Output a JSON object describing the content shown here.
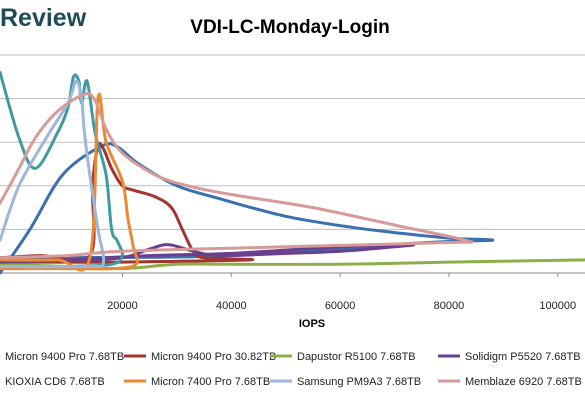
{
  "header": {
    "logo_text": "Review"
  },
  "chart_data": {
    "type": "line",
    "title": "VDI-LC-Monday-Login",
    "xlabel": "IOPS",
    "ylabel": "",
    "xlim": [
      -2500,
      105000
    ],
    "ylim": [
      0,
      100
    ],
    "x_ticks": [
      "20000",
      "40000",
      "60000",
      "80000",
      "100000"
    ],
    "x_tick_values": [
      20000,
      40000,
      60000,
      80000,
      100000
    ],
    "y_gridlines": [
      0,
      20,
      40,
      60,
      80,
      100
    ],
    "grid": true,
    "legend_position": "bottom",
    "series": [
      {
        "name": "Micron 9400 Pro 7.68TB",
        "color": "#3a6fb0",
        "points": [
          [
            -2500,
            0
          ],
          [
            3000,
            20
          ],
          [
            9000,
            45
          ],
          [
            16000,
            58
          ],
          [
            19000,
            58
          ],
          [
            23000,
            50
          ],
          [
            30000,
            40
          ],
          [
            38000,
            34
          ],
          [
            50000,
            26
          ],
          [
            62000,
            21
          ],
          [
            72000,
            18
          ],
          [
            80000,
            16
          ],
          [
            88000,
            15
          ],
          [
            76000,
            14
          ],
          [
            40000,
            8
          ],
          [
            10000,
            7
          ],
          [
            -2500,
            6
          ]
        ]
      },
      {
        "name": "Micron 9400 Pro 30.82TB",
        "color": "#a0342f",
        "points": [
          [
            -2500,
            7
          ],
          [
            5000,
            8
          ],
          [
            14000,
            8
          ],
          [
            14500,
            40
          ],
          [
            15500,
            58
          ],
          [
            16500,
            57
          ],
          [
            18000,
            48
          ],
          [
            20000,
            40
          ],
          [
            22000,
            38
          ],
          [
            26000,
            35
          ],
          [
            29000,
            30
          ],
          [
            31000,
            20
          ],
          [
            33000,
            10
          ],
          [
            35000,
            7
          ],
          [
            43500,
            6
          ],
          [
            20000,
            5
          ],
          [
            10000,
            5
          ],
          [
            -2500,
            5
          ]
        ]
      },
      {
        "name": "Dapustor R5100 7.68TB",
        "color": "#8cb048",
        "points": [
          [
            -2500,
            4
          ],
          [
            10000,
            3
          ],
          [
            20000,
            2
          ],
          [
            30000,
            4
          ],
          [
            40000,
            4
          ],
          [
            60000,
            4
          ],
          [
            80000,
            5
          ],
          [
            105000,
            6
          ]
        ]
      },
      {
        "name": "Solidigm P5520 7.68TB",
        "color": "#6a3f8e",
        "points": [
          [
            -2500,
            6
          ],
          [
            12000,
            6
          ],
          [
            20000,
            7
          ],
          [
            25000,
            11
          ],
          [
            28500,
            13
          ],
          [
            33000,
            10
          ],
          [
            38000,
            8
          ],
          [
            50000,
            9
          ],
          [
            60000,
            10
          ],
          [
            70000,
            12
          ],
          [
            73000,
            13
          ],
          [
            60000,
            12
          ],
          [
            40000,
            9
          ],
          [
            25000,
            8
          ],
          [
            10000,
            6
          ],
          [
            -2500,
            5
          ]
        ]
      },
      {
        "name": "KIOXIA CD6 7.68TB",
        "color": "#3f9aa4",
        "points": [
          [
            -2500,
            92
          ],
          [
            1000,
            62
          ],
          [
            4000,
            48
          ],
          [
            8000,
            64
          ],
          [
            10000,
            76
          ],
          [
            11000,
            90
          ],
          [
            12000,
            88
          ],
          [
            12500,
            78
          ],
          [
            13500,
            88
          ],
          [
            15000,
            64
          ],
          [
            17000,
            45
          ],
          [
            18000,
            20
          ],
          [
            19000,
            15
          ],
          [
            20000,
            8
          ],
          [
            18000,
            4
          ],
          [
            10000,
            3
          ],
          [
            -2500,
            2
          ]
        ]
      },
      {
        "name": "Micron 7400 Pro 7.68TB",
        "color": "#e98a33",
        "points": [
          [
            -2500,
            6
          ],
          [
            8000,
            6
          ],
          [
            14000,
            7
          ],
          [
            15500,
            80
          ],
          [
            17000,
            60
          ],
          [
            20000,
            42
          ],
          [
            21000,
            25
          ],
          [
            22000,
            12
          ],
          [
            22500,
            4
          ],
          [
            18000,
            2
          ],
          [
            10000,
            2
          ],
          [
            -2500,
            2
          ]
        ]
      },
      {
        "name": "Samsung PM9A3 7.68TB",
        "color": "#9eb6dc",
        "points": [
          [
            -2500,
            15
          ],
          [
            1000,
            40
          ],
          [
            6000,
            62
          ],
          [
            10000,
            78
          ],
          [
            11500,
            88
          ],
          [
            12500,
            80
          ],
          [
            13000,
            65
          ],
          [
            14000,
            45
          ],
          [
            15500,
            20
          ],
          [
            16500,
            5
          ],
          [
            14000,
            3
          ],
          [
            -2500,
            3
          ]
        ]
      },
      {
        "name": "Memblaze 6920 7.68TB",
        "color": "#d89a98",
        "points": [
          [
            -2500,
            32
          ],
          [
            1000,
            48
          ],
          [
            4000,
            62
          ],
          [
            8000,
            74
          ],
          [
            13000,
            82
          ],
          [
            15000,
            79
          ],
          [
            17000,
            66
          ],
          [
            20000,
            55
          ],
          [
            26000,
            45
          ],
          [
            32000,
            40
          ],
          [
            40000,
            36
          ],
          [
            55000,
            30
          ],
          [
            70000,
            22
          ],
          [
            83000,
            15
          ],
          [
            80000,
            14
          ],
          [
            50000,
            12
          ],
          [
            20000,
            10
          ],
          [
            10000,
            8
          ],
          [
            -2500,
            7
          ]
        ]
      }
    ]
  }
}
